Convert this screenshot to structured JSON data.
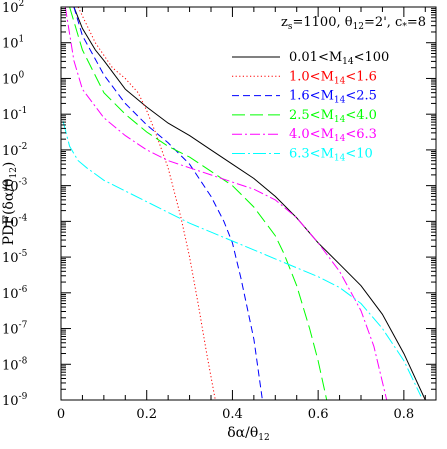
{
  "chart_data": {
    "type": "line",
    "xlabel": "δα/θ₁₂",
    "ylabel": "PDF(δα/θ₁₂)",
    "xlim": [
      0,
      0.875
    ],
    "ylim_log10": [
      -9,
      2
    ],
    "y_scale": "log",
    "grid": false,
    "legend_position": "top-right",
    "x_ticks": [
      {
        "v": 0,
        "label": "0"
      },
      {
        "v": 0.2,
        "label": "0.2"
      },
      {
        "v": 0.4,
        "label": "0.4"
      },
      {
        "v": 0.6,
        "label": "0.6"
      },
      {
        "v": 0.8,
        "label": "0.8"
      }
    ],
    "y_ticks": [
      {
        "e": 2,
        "base": "10",
        "exp": "2"
      },
      {
        "e": 1,
        "base": "10",
        "exp": "1"
      },
      {
        "e": 0,
        "base": "10",
        "exp": "0"
      },
      {
        "e": -1,
        "base": "10",
        "exp": "-1"
      },
      {
        "e": -2,
        "base": "10",
        "exp": "-2"
      },
      {
        "e": -3,
        "base": "10",
        "exp": "-3"
      },
      {
        "e": -4,
        "base": "10",
        "exp": "-4"
      },
      {
        "e": -5,
        "base": "10",
        "exp": "-5"
      },
      {
        "e": -6,
        "base": "10",
        "exp": "-6"
      },
      {
        "e": -7,
        "base": "10",
        "exp": "-7"
      },
      {
        "e": -8,
        "base": "10",
        "exp": "-8"
      },
      {
        "e": -9,
        "base": "10",
        "exp": "-9"
      }
    ],
    "annotation": {
      "parts": [
        {
          "t": "z"
        },
        {
          "t": "s",
          "sub": true
        },
        {
          "t": "=1100,  "
        },
        {
          "t": "θ"
        },
        {
          "t": "12",
          "sub": true
        },
        {
          "t": "=2',  c"
        },
        {
          "t": "*",
          "sub": true
        },
        {
          "t": "=8"
        }
      ]
    },
    "series": [
      {
        "name": "0.01<M14<100",
        "label_parts": [
          {
            "t": "0.01<M"
          },
          {
            "t": "14",
            "sub": true
          },
          {
            "t": "<100"
          }
        ],
        "color": "#000000",
        "dash": "",
        "x": [
          0.03,
          0.05,
          0.08,
          0.1,
          0.15,
          0.2,
          0.25,
          0.3,
          0.35,
          0.4,
          0.45,
          0.5,
          0.55,
          0.6,
          0.65,
          0.7,
          0.75,
          0.8,
          0.85
        ],
        "logy": [
          2.0,
          1.4,
          0.8,
          0.5,
          -0.3,
          -0.8,
          -1.25,
          -1.6,
          -2.0,
          -2.4,
          -2.8,
          -3.3,
          -3.9,
          -4.6,
          -5.2,
          -5.8,
          -6.6,
          -7.7,
          -9.0
        ]
      },
      {
        "name": "1.0<M14<1.6",
        "label_parts": [
          {
            "t": "1.0<M"
          },
          {
            "t": "14",
            "sub": true
          },
          {
            "t": "<1.6"
          }
        ],
        "color": "#ff0000",
        "dash": "1.2 2.4",
        "x": [
          0.04,
          0.08,
          0.12,
          0.15,
          0.18,
          0.2,
          0.22,
          0.25,
          0.28,
          0.3,
          0.32,
          0.34,
          0.36
        ],
        "logy": [
          2.0,
          1.0,
          0.3,
          0,
          -0.4,
          -0.9,
          -1.5,
          -2.5,
          -3.9,
          -5.0,
          -6.3,
          -7.7,
          -9.0
        ]
      },
      {
        "name": "1.6<M14<2.5",
        "label_parts": [
          {
            "t": "1.6<M"
          },
          {
            "t": "14",
            "sub": true
          },
          {
            "t": "<2.5"
          }
        ],
        "color": "#0000ff",
        "dash": "7 4",
        "x": [
          0.03,
          0.05,
          0.1,
          0.15,
          0.2,
          0.25,
          0.3,
          0.35,
          0.38,
          0.4,
          0.42,
          0.45,
          0.47
        ],
        "logy": [
          2.0,
          1.2,
          0.1,
          -0.7,
          -1.3,
          -1.8,
          -2.4,
          -3.3,
          -4.0,
          -4.6,
          -5.6,
          -7.3,
          -9.0
        ]
      },
      {
        "name": "2.5<M14<4.0",
        "label_parts": [
          {
            "t": "2.5<M"
          },
          {
            "t": "14",
            "sub": true
          },
          {
            "t": "<4.0"
          }
        ],
        "color": "#00ff00",
        "dash": "13 5",
        "x": [
          0.02,
          0.05,
          0.1,
          0.15,
          0.2,
          0.25,
          0.3,
          0.35,
          0.4,
          0.45,
          0.5,
          0.52,
          0.55,
          0.58,
          0.6,
          0.62
        ],
        "logy": [
          2.0,
          0.8,
          -0.4,
          -1.0,
          -1.5,
          -1.9,
          -2.2,
          -2.6,
          -3.0,
          -3.6,
          -4.4,
          -4.9,
          -5.8,
          -7.0,
          -7.9,
          -9.0
        ]
      },
      {
        "name": "4.0<M14<6.3",
        "label_parts": [
          {
            "t": "4.0<M"
          },
          {
            "t": "14",
            "sub": true
          },
          {
            "t": "<6.3"
          }
        ],
        "color": "#ff00ff",
        "dash": "10 3 2 3",
        "x": [
          0.01,
          0.03,
          0.05,
          0.1,
          0.15,
          0.2,
          0.25,
          0.3,
          0.35,
          0.4,
          0.45,
          0.5,
          0.55,
          0.6,
          0.65,
          0.7,
          0.73,
          0.76
        ],
        "logy": [
          2.0,
          0.5,
          -0.3,
          -1.1,
          -1.6,
          -2.0,
          -2.3,
          -2.5,
          -2.7,
          -2.9,
          -3.1,
          -3.4,
          -3.9,
          -4.6,
          -5.4,
          -6.5,
          -7.5,
          -9.0
        ]
      },
      {
        "name": "6.3<M14<10",
        "label_parts": [
          {
            "t": "6.3<M"
          },
          {
            "t": "14",
            "sub": true
          },
          {
            "t": "<10"
          }
        ],
        "color": "#00ffff",
        "dash": "13 3 2 3",
        "x": [
          0.005,
          0.02,
          0.04,
          0.06,
          0.1,
          0.15,
          0.2,
          0.25,
          0.3,
          0.35,
          0.4,
          0.45,
          0.5,
          0.55,
          0.6,
          0.65,
          0.7,
          0.75,
          0.8,
          0.84
        ],
        "logy": [
          -1.2,
          -1.9,
          -2.3,
          -2.5,
          -2.85,
          -3.15,
          -3.45,
          -3.75,
          -4.05,
          -4.3,
          -4.55,
          -4.8,
          -5.05,
          -5.3,
          -5.55,
          -5.85,
          -6.3,
          -7.0,
          -7.9,
          -8.9
        ]
      }
    ]
  }
}
